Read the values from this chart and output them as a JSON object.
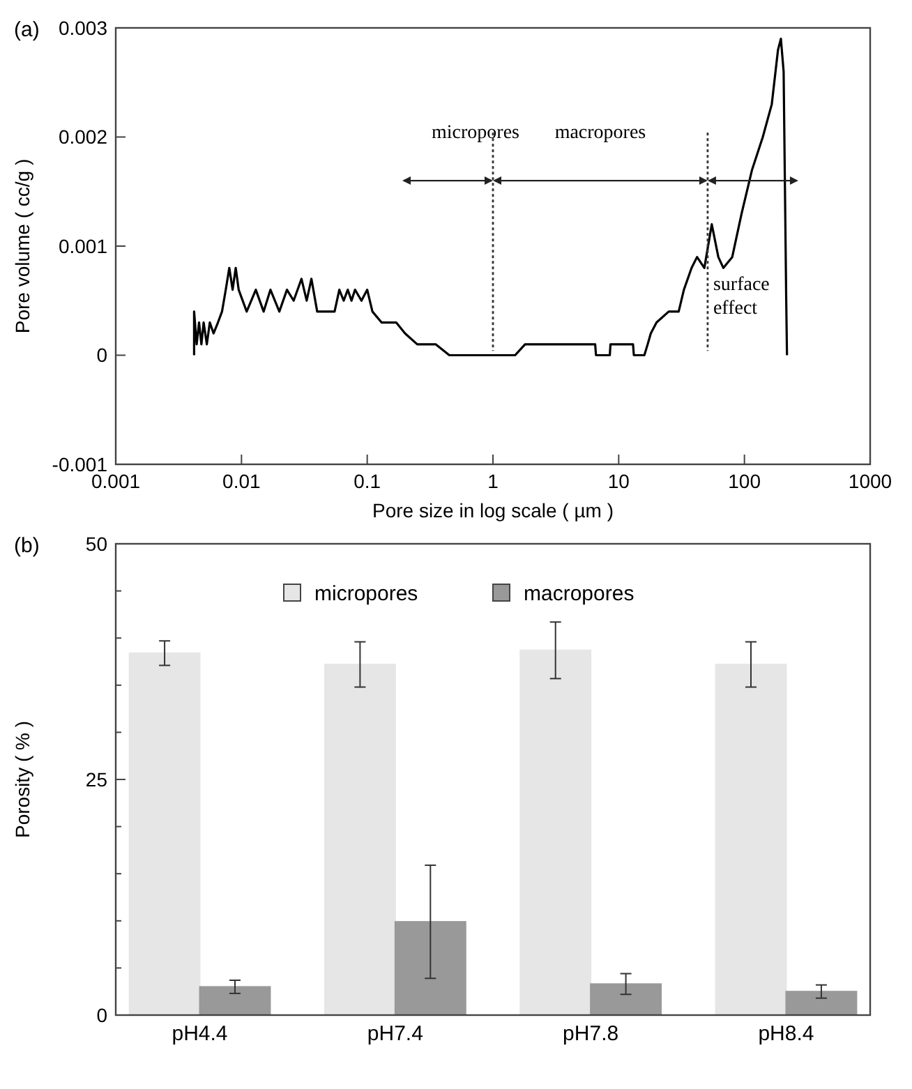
{
  "chart_data": [
    {
      "type": "line",
      "title": "(a)",
      "xlabel": "Pore size in log scale ( µm )",
      "ylabel": "Pore volume ( cc/g )",
      "log": "x",
      "xlim": [
        0.001,
        1000
      ],
      "xticks": [
        0.001,
        0.01,
        0.1,
        1,
        10,
        100,
        1000
      ],
      "ylim": [
        -0.001,
        0.003
      ],
      "yticks": [
        -0.001,
        0,
        0.001,
        0.002,
        0.003
      ],
      "grid": false,
      "legend": false,
      "series": [
        {
          "color": "#000000",
          "x": [
            0.0042,
            0.0042,
            0.0044,
            0.0046,
            0.0048,
            0.005,
            0.0053,
            0.0056,
            0.006,
            0.0065,
            0.007,
            0.0075,
            0.008,
            0.0085,
            0.009,
            0.0095,
            0.011,
            0.013,
            0.015,
            0.017,
            0.02,
            0.023,
            0.026,
            0.03,
            0.033,
            0.036,
            0.04,
            0.045,
            0.055,
            0.06,
            0.065,
            0.07,
            0.075,
            0.08,
            0.09,
            0.1,
            0.11,
            0.13,
            0.17,
            0.2,
            0.25,
            0.35,
            0.45,
            1.5,
            1.8,
            6.5,
            6.6,
            8.5,
            8.6,
            13,
            13.2,
            16,
            17,
            18,
            20,
            25,
            30,
            33,
            38,
            42,
            48,
            55,
            62,
            68,
            80,
            95,
            115,
            140,
            165,
            185,
            195,
            205,
            215,
            218
          ],
          "values": [
            0,
            0.0004,
            0.0001,
            0.0003,
            0.0001,
            0.0003,
            0.0001,
            0.0003,
            0.0002,
            0.0003,
            0.0004,
            0.0006,
            0.0008,
            0.0006,
            0.0008,
            0.0006,
            0.0004,
            0.0006,
            0.0004,
            0.0006,
            0.0004,
            0.0006,
            0.0005,
            0.0007,
            0.0005,
            0.0007,
            0.0004,
            0.0004,
            0.0004,
            0.0006,
            0.0005,
            0.0006,
            0.0005,
            0.0006,
            0.0005,
            0.0006,
            0.0004,
            0.0003,
            0.0003,
            0.0002,
            0.0001,
            0.0001,
            0,
            0,
            0.0001,
            0.0001,
            0,
            0,
            0.0001,
            0.0001,
            0,
            0,
            0.0001,
            0.0002,
            0.0003,
            0.0004,
            0.0004,
            0.0006,
            0.0008,
            0.0009,
            0.0008,
            0.0012,
            0.0009,
            0.0008,
            0.0009,
            0.0013,
            0.0017,
            0.002,
            0.0023,
            0.0028,
            0.0029,
            0.0026,
            0.0005,
            0
          ]
        }
      ],
      "ref_lines": [
        {
          "axis": "x",
          "value": 1,
          "line_style": "dotted"
        },
        {
          "axis": "x",
          "value": 51,
          "line_style": "dotted"
        }
      ],
      "annotations": [
        "micropores",
        "macropores",
        "surface effect"
      ]
    },
    {
      "type": "bar",
      "title": "(b)",
      "ylabel": "Porosity ( % )",
      "categories": [
        "pH4.4",
        "pH7.4",
        "pH7.8",
        "pH8.4"
      ],
      "ylim": [
        0,
        50
      ],
      "yticks": [
        0,
        {
          "value": 5,
          "label": null
        },
        {
          "value": 10,
          "label": null
        },
        {
          "value": 15,
          "label": null
        },
        {
          "value": 20,
          "label": null
        },
        25,
        {
          "value": 30,
          "label": null
        },
        {
          "value": 35,
          "label": null
        },
        {
          "value": 40,
          "label": null
        },
        {
          "value": 45,
          "label": null
        },
        50
      ],
      "grid": false,
      "legend": "top",
      "series": [
        {
          "name": "micropores",
          "color": "#e6e6e6",
          "values": [
            38.4,
            37.2,
            38.7,
            37.2
          ],
          "errors": [
            1.3,
            2.4,
            3,
            2.4
          ]
        },
        {
          "name": "macropores",
          "color": "#999999",
          "values": [
            3,
            9.9,
            3.3,
            2.5
          ],
          "errors": [
            0.7,
            6,
            1.1,
            0.7
          ]
        }
      ]
    }
  ]
}
